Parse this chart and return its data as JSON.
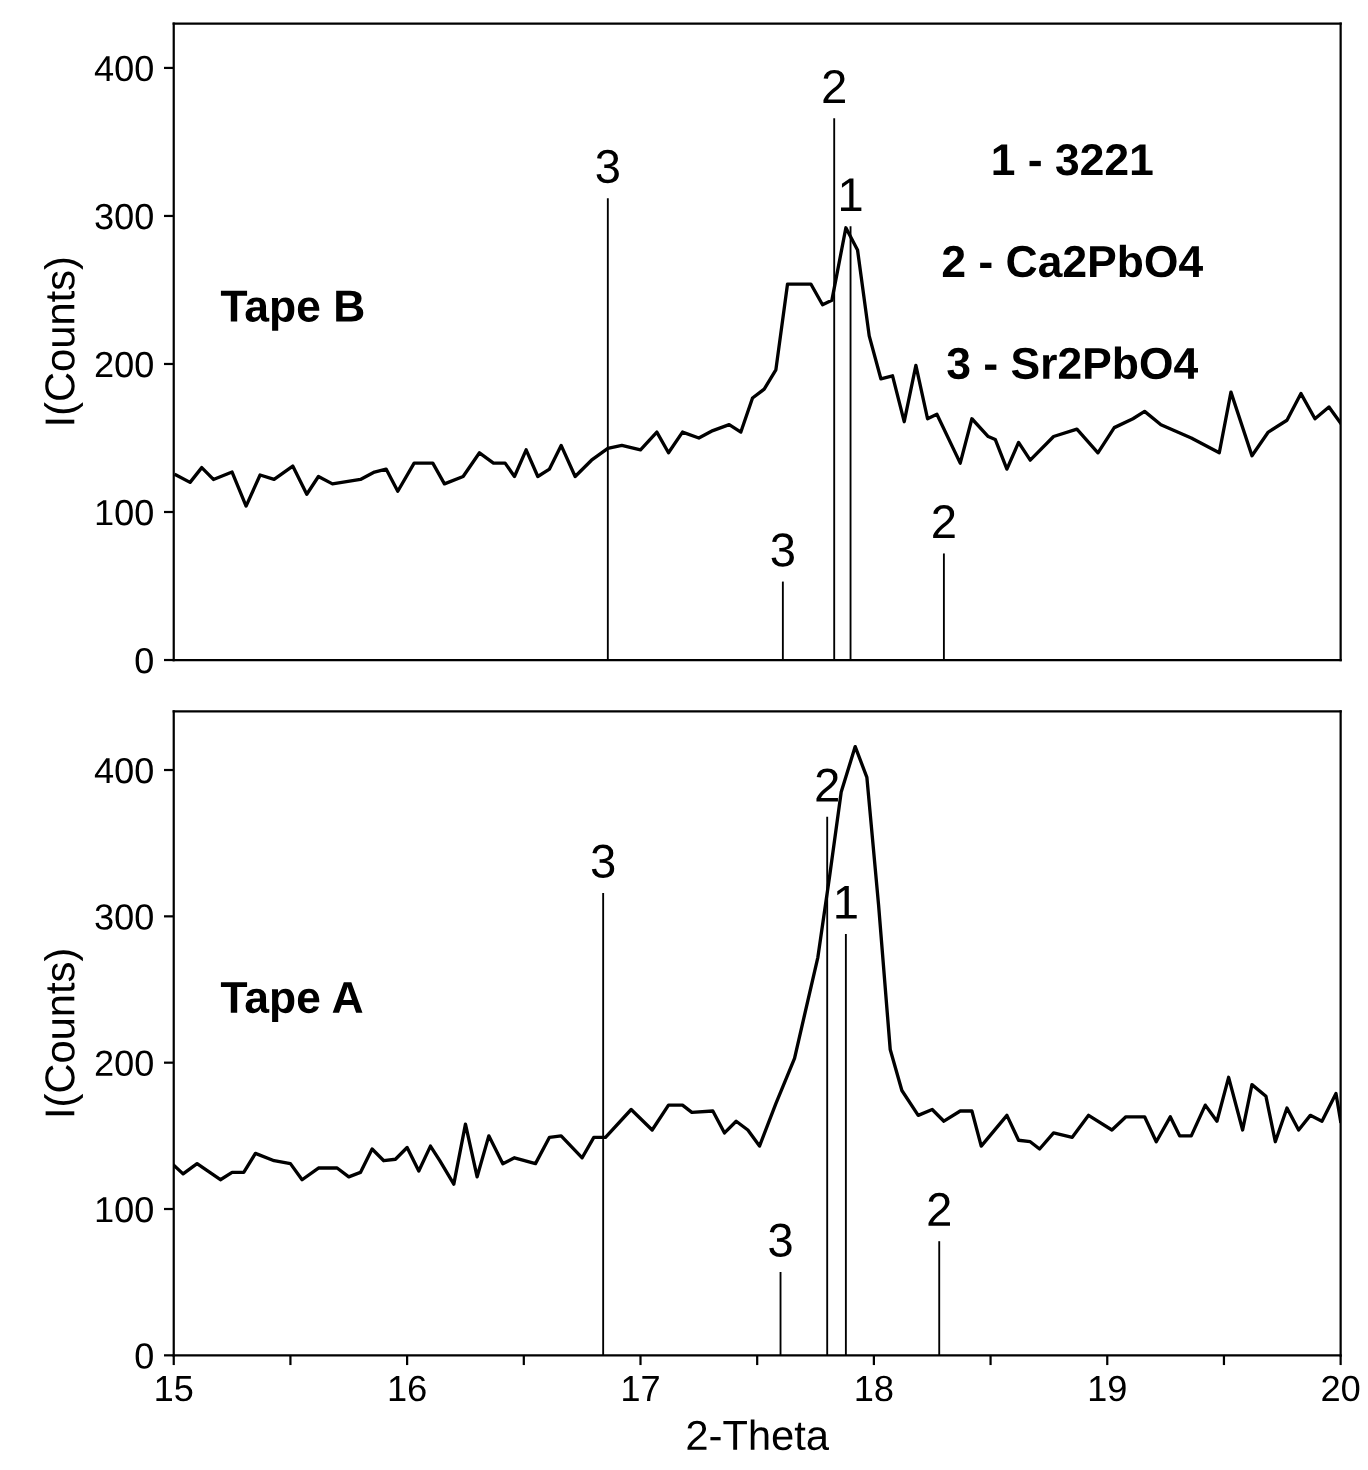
{
  "chart_data": [
    {
      "type": "line",
      "ylabel": "I(Counts)",
      "xlim": [
        15,
        20
      ],
      "ylim": [
        0,
        430
      ],
      "yticks": [
        0,
        100,
        200,
        300,
        400
      ],
      "tick_labels": "y",
      "grid": false,
      "legend": false,
      "annotations": [
        "Tape B",
        "1 - 3221",
        "2 - Ca2PbO4",
        "3 - Sr2PbO4",
        {
          "text": "3",
          "x": 16.86,
          "y": 312
        },
        {
          "text": "3",
          "x": 17.61,
          "y": 53
        },
        {
          "text": "2",
          "x": 17.83,
          "y": 366
        },
        {
          "text": "1",
          "x": 17.9,
          "y": 293
        },
        {
          "text": "2",
          "x": 18.3,
          "y": 72
        }
      ],
      "series": [
        {
          "color": "#000000",
          "x": [
            15.01,
            15.07,
            15.12,
            15.17,
            15.25,
            15.31,
            15.37,
            15.43,
            15.51,
            15.57,
            15.62,
            15.68,
            15.8,
            15.86,
            15.91,
            15.96,
            16.03,
            16.11,
            16.16,
            16.24,
            16.31,
            16.37,
            16.42,
            16.46,
            16.51,
            16.56,
            16.61,
            16.66,
            16.72,
            16.79,
            16.86,
            16.92,
            17.0,
            17.07,
            17.12,
            17.18,
            17.25,
            17.31,
            17.38,
            17.43,
            17.48,
            17.53,
            17.58,
            17.63,
            17.73,
            17.78,
            17.82,
            17.88,
            17.93,
            17.98,
            18.03,
            18.08,
            18.13,
            18.18,
            18.23,
            18.27,
            18.37,
            18.42,
            18.49,
            18.52,
            18.57,
            18.62,
            18.67,
            18.77,
            18.87,
            18.96,
            19.03,
            19.11,
            19.16,
            19.23,
            19.36,
            19.48,
            19.53,
            19.62,
            19.69,
            19.77,
            19.83,
            19.89,
            19.95,
            20.0
          ],
          "values": [
            125,
            120,
            130,
            122,
            127,
            104,
            125,
            122,
            131,
            112,
            124,
            119,
            122,
            127,
            129,
            114,
            133,
            133,
            119,
            124,
            140,
            133,
            133,
            124,
            142,
            124,
            129,
            145,
            124,
            135,
            143,
            145,
            142,
            154,
            140,
            154,
            150,
            155,
            159,
            154,
            177,
            183,
            196,
            254,
            254,
            240,
            243,
            292,
            277,
            219,
            190,
            192,
            161,
            199,
            163,
            166,
            133,
            163,
            151,
            149,
            129,
            147,
            135,
            151,
            156,
            140,
            157,
            163,
            168,
            159,
            150,
            140,
            181,
            138,
            154,
            162,
            180,
            163,
            171,
            160
          ]
        },
        {
          "type": "bar",
          "color": "#000000",
          "x": [
            16.86,
            17.61,
            17.83,
            17.9,
            18.3
          ],
          "values": [
            312,
            53,
            366,
            293,
            72
          ]
        }
      ]
    },
    {
      "type": "line",
      "xlabel": "2-Theta",
      "ylabel": "I(Counts)",
      "xlim": [
        15,
        20
      ],
      "ylim": [
        0,
        440
      ],
      "yticks": [
        0,
        100,
        200,
        300,
        400
      ],
      "xticks": [
        15,
        {
          "value": 15.5,
          "label": null
        },
        16,
        {
          "value": 16.5,
          "label": null
        },
        17,
        {
          "value": 17.5,
          "label": null
        },
        18,
        {
          "value": 18.5,
          "label": null
        },
        19,
        {
          "value": 19.5,
          "label": null
        },
        20
      ],
      "grid": false,
      "legend": false,
      "annotations": [
        "Tape A",
        {
          "text": "3",
          "x": 16.84,
          "y": 316
        },
        {
          "text": "3",
          "x": 17.6,
          "y": 57
        },
        {
          "text": "2",
          "x": 17.8,
          "y": 368
        },
        {
          "text": "1",
          "x": 17.88,
          "y": 288
        },
        {
          "text": "2",
          "x": 18.28,
          "y": 78
        }
      ],
      "series": [
        {
          "color": "#000000",
          "x": [
            15.0,
            15.04,
            15.1,
            15.2,
            15.25,
            15.3,
            15.35,
            15.43,
            15.5,
            15.55,
            15.62,
            15.7,
            15.75,
            15.8,
            15.85,
            15.9,
            15.95,
            16.0,
            16.05,
            16.1,
            16.14,
            16.2,
            16.25,
            16.3,
            16.35,
            16.41,
            16.46,
            16.55,
            16.61,
            16.66,
            16.75,
            16.8,
            16.85,
            16.96,
            17.05,
            17.12,
            17.18,
            17.22,
            17.31,
            17.36,
            17.41,
            17.46,
            17.51,
            17.58,
            17.66,
            17.76,
            17.81,
            17.86,
            17.92,
            17.97,
            18.02,
            18.07,
            18.12,
            18.19,
            18.25,
            18.3,
            18.37,
            18.42,
            18.46,
            18.57,
            18.62,
            18.67,
            18.71,
            18.77,
            18.85,
            18.92,
            19.02,
            19.08,
            19.16,
            19.21,
            19.27,
            19.31,
            19.36,
            19.42,
            19.47,
            19.52,
            19.58,
            19.62,
            19.68,
            19.72,
            19.77,
            19.82,
            19.87,
            19.92,
            19.98,
            20.0
          ],
          "values": [
            130,
            124,
            131,
            120,
            125,
            125,
            138,
            133,
            131,
            120,
            128,
            128,
            122,
            125,
            141,
            133,
            134,
            142,
            126,
            143,
            133,
            117,
            158,
            122,
            150,
            131,
            135,
            131,
            149,
            150,
            135,
            149,
            149,
            168,
            154,
            171,
            171,
            166,
            167,
            152,
            160,
            154,
            143,
            172,
            203,
            272,
            327,
            385,
            416,
            395,
            308,
            209,
            181,
            164,
            168,
            160,
            167,
            167,
            143,
            164,
            147,
            146,
            141,
            152,
            149,
            164,
            154,
            163,
            163,
            146,
            163,
            150,
            150,
            171,
            160,
            190,
            154,
            185,
            177,
            146,
            169,
            154,
            164,
            160,
            179,
            160
          ]
        },
        {
          "type": "bar",
          "color": "#000000",
          "x": [
            16.84,
            17.6,
            17.8,
            17.88,
            18.28
          ],
          "values": [
            316,
            57,
            368,
            288,
            78
          ]
        }
      ]
    }
  ]
}
